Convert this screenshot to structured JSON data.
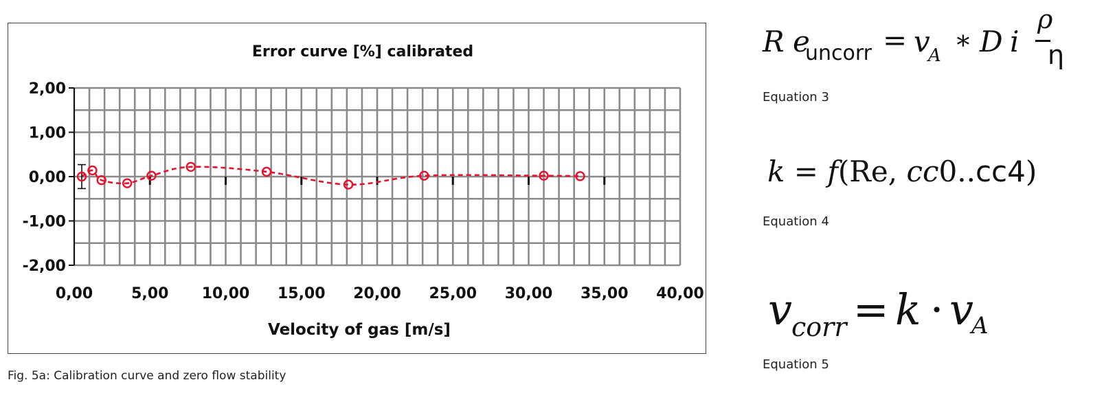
{
  "chart_data": {
    "type": "scatter",
    "title": "Error curve [%] calibrated",
    "xlabel": "Velocity of gas [m/s]",
    "ylabel": "",
    "xlim": [
      0,
      40
    ],
    "ylim": [
      -2,
      2
    ],
    "x_ticks": [
      "0,00",
      "5,00",
      "10,00",
      "15,00",
      "20,00",
      "25,00",
      "30,00",
      "35,00",
      "40,00"
    ],
    "y_ticks": [
      "2,00",
      "1,00",
      "0,00",
      "-1,00",
      "-2,00"
    ],
    "grid": true,
    "line_style": "dashed smooth",
    "marker": "open circle",
    "color": "#e8112d",
    "series": [
      {
        "x": [
          0.5,
          1.2,
          1.8,
          3.5,
          5.1,
          7.7,
          12.7,
          18.1,
          23.1,
          31.0,
          33.4
        ],
        "y": [
          0.0,
          0.14,
          -0.08,
          -0.15,
          0.02,
          0.22,
          0.11,
          -0.18,
          0.02,
          0.02,
          0.01
        ]
      }
    ],
    "error_bar": {
      "x": 0.5,
      "low": -0.27,
      "high": 0.27
    },
    "minor_marks_x": [
      5,
      10,
      15,
      20,
      25,
      30,
      35
    ]
  },
  "caption": "Fig. 5a: Calibration curve and zero flow stability",
  "equations": [
    {
      "label": "Equation  3"
    },
    {
      "label": "Equation  4"
    },
    {
      "label": "Equation  5"
    }
  ],
  "eq3": {
    "R": "R",
    "e": "e",
    "sub": "uncorr",
    "eqsign": "=",
    "v": "v",
    "vsub": "A",
    "star": "∗",
    "D": "D",
    "i": "i",
    "num": "ρ",
    "den": "η"
  },
  "eq4": {
    "k": "k",
    "rest": " = ",
    "f": "f",
    "paren": "(Re, ",
    "cc": "cc",
    "mid": "0..",
    "cc4": "cc4",
    "close": ")"
  },
  "eq5": {
    "v": "v",
    "sub": "corr",
    "eqsign": " = ",
    "k": "k",
    "dot": " · ",
    "v2": "v",
    "sub2": "A"
  }
}
